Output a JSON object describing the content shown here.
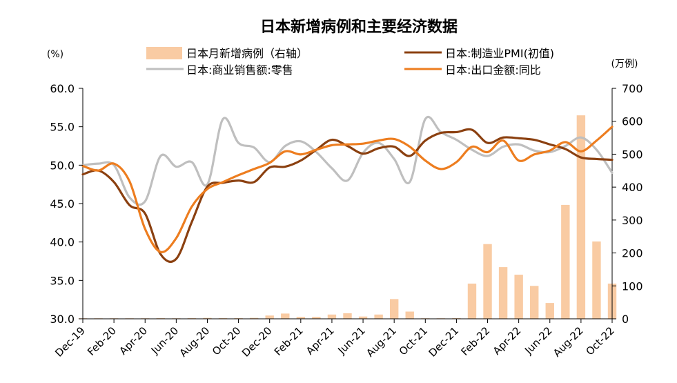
{
  "chart_data": {
    "type": "combo-bar-line",
    "title": "日本新增病例和主要经济数据",
    "left_axis": {
      "unit": "(%)",
      "min": 30,
      "max": 60,
      "ticks": [
        "30.0",
        "35.0",
        "40.0",
        "45.0",
        "50.0",
        "55.0",
        "60.0"
      ]
    },
    "right_axis": {
      "unit": "(万例)",
      "min": 0,
      "max": 700,
      "ticks": [
        "0",
        "100",
        "200",
        "300",
        "400",
        "500",
        "600",
        "700"
      ]
    },
    "x_labels": [
      "Dec-19",
      "Feb-20",
      "Apr-20",
      "Jun-20",
      "Aug-20",
      "Oct-20",
      "Dec-20",
      "Feb-21",
      "Apr-21",
      "Jun-21",
      "Aug-21",
      "Oct-21",
      "Dec-21",
      "Feb-22",
      "Apr-22",
      "Jun-22",
      "Aug-22",
      "Oct-22"
    ],
    "months": [
      "Dec-19",
      "Jan-20",
      "Feb-20",
      "Mar-20",
      "Apr-20",
      "May-20",
      "Jun-20",
      "Jul-20",
      "Aug-20",
      "Sep-20",
      "Oct-20",
      "Nov-20",
      "Dec-20",
      "Jan-21",
      "Feb-21",
      "Mar-21",
      "Apr-21",
      "May-21",
      "Jun-21",
      "Jul-21",
      "Aug-21",
      "Sep-21",
      "Oct-21",
      "Nov-21",
      "Dec-21",
      "Jan-22",
      "Feb-22",
      "Mar-22",
      "Apr-22",
      "May-22",
      "Jun-22",
      "Jul-22",
      "Aug-22",
      "Sep-22",
      "Oct-22"
    ],
    "series": [
      {
        "name": "日本月新增病例（右轴）",
        "axis": "right",
        "kind": "bar",
        "color": "#f9cba3",
        "values": [
          0,
          0,
          0,
          0,
          1,
          2,
          1,
          2,
          3,
          2,
          2,
          3,
          10,
          16,
          6,
          6,
          13,
          17,
          7,
          13,
          60,
          22,
          1,
          1,
          2,
          107,
          227,
          157,
          134,
          100,
          48,
          346,
          618,
          235,
          107
        ]
      },
      {
        "name": "日本:制造业PMI(初值)",
        "axis": "left",
        "kind": "line",
        "color": "#8b4010",
        "values": [
          48.8,
          49.3,
          47.8,
          44.8,
          43.7,
          38.4,
          37.8,
          42.6,
          47.2,
          47.7,
          48.0,
          47.8,
          49.7,
          49.8,
          50.6,
          52.0,
          53.3,
          52.5,
          51.5,
          52.2,
          52.4,
          51.2,
          53.2,
          54.2,
          54.3,
          54.6,
          52.9,
          53.6,
          53.5,
          53.3,
          52.7,
          52.1,
          51.0,
          50.8,
          50.7
        ]
      },
      {
        "name": "日本:商业销售额:零售",
        "axis": "left",
        "kind": "line",
        "color": "#bfbfbf",
        "values": [
          50.0,
          50.2,
          50.0,
          45.8,
          45.3,
          51.2,
          49.8,
          50.4,
          47.5,
          56.0,
          52.9,
          52.3,
          50.4,
          52.5,
          53.1,
          51.7,
          49.6,
          48.0,
          51.6,
          52.9,
          50.8,
          47.8,
          56.0,
          54.3,
          53.3,
          52.0,
          51.2,
          52.4,
          52.7,
          51.9,
          51.7,
          52.5,
          53.6,
          52.0,
          49.0
        ]
      },
      {
        "name": "日本:出口金额:同比",
        "axis": "left",
        "kind": "line",
        "color": "#ed7d1f",
        "values": [
          49.9,
          49.3,
          50.2,
          47.9,
          41.7,
          38.7,
          40.5,
          44.6,
          46.9,
          47.8,
          48.7,
          49.5,
          50.3,
          51.8,
          51.4,
          52.0,
          52.6,
          52.7,
          52.8,
          53.2,
          53.4,
          52.4,
          50.6,
          49.5,
          50.4,
          52.4,
          51.7,
          53.2,
          50.6,
          51.4,
          51.9,
          53.0,
          51.8,
          53.2,
          55.0
        ]
      }
    ],
    "legend": {
      "placement": "top"
    }
  }
}
